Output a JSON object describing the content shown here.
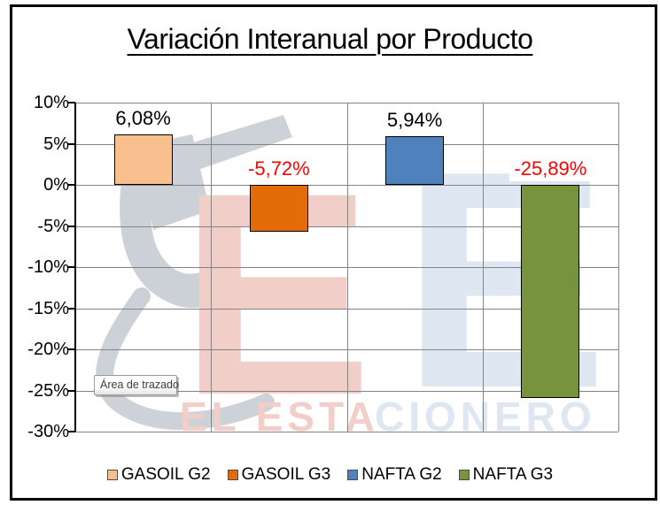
{
  "title": "Variación Interanual por Producto",
  "chart_data": {
    "type": "bar",
    "title": "Variación Interanual por Producto",
    "categories": [
      "GASOIL G2",
      "GASOIL G3",
      "NAFTA G2",
      "NAFTA G3"
    ],
    "values": [
      6.08,
      -5.72,
      5.94,
      -25.89
    ],
    "value_labels": [
      "6,08%",
      "-5,72%",
      "5,94%",
      "-25,89%"
    ],
    "value_label_colors": [
      "#000000",
      "#FF0000",
      "#000000",
      "#FF0000"
    ],
    "series_colors": [
      "#FABF8F",
      "#E36C09",
      "#4F81BD",
      "#77933C"
    ],
    "xlabel": "",
    "ylabel": "",
    "ylim": [
      -30,
      10
    ],
    "ytick_step": 5,
    "ytick_labels": [
      "10%",
      "5%",
      "0%",
      "-5%",
      "-10%",
      "-15%",
      "-20%",
      "-25%",
      "-30%"
    ],
    "grid": true,
    "gridline_color": "#848484",
    "axis_color": "#000000",
    "legend_position": "bottom"
  },
  "tooltip": {
    "text": "Área de trazado"
  },
  "watermark": {
    "letter_1": "E",
    "letter_2": "E",
    "brand_left": "EL ESTA",
    "brand_right": "CIONERO",
    "red": "#F2CEC9",
    "blue": "#DDE6F1",
    "nozzle": "#5A6B7E"
  }
}
